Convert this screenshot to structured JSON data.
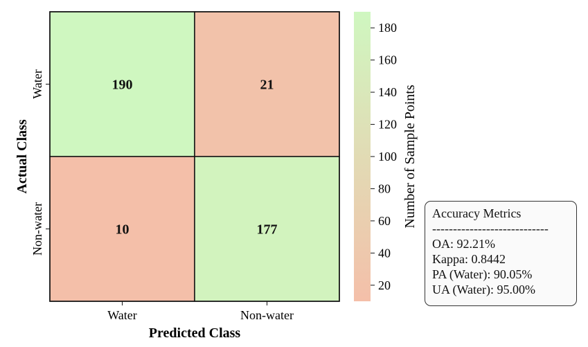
{
  "chart_data": {
    "type": "heatmap",
    "title": "",
    "xlabel": "Predicted Class",
    "ylabel": "Actual Class",
    "x_categories": [
      "Water",
      "Non-water"
    ],
    "y_categories": [
      "Water",
      "Non-water"
    ],
    "values": [
      [
        190,
        21
      ],
      [
        10,
        177
      ]
    ],
    "colorbar": {
      "label": "Number of Sample Points",
      "ticks": [
        20,
        40,
        60,
        80,
        100,
        120,
        140,
        160,
        180
      ],
      "range": [
        10,
        190
      ],
      "color_low": "#f4bfa9",
      "color_high": "#cff7c0"
    }
  },
  "metrics_box": {
    "title": "Accuracy Metrics",
    "separator": "----------------------------",
    "lines": [
      "OA:  92.21%",
      "Kappa:  0.8442",
      "PA (Water):  90.05%",
      "UA (Water):  95.00%"
    ]
  }
}
